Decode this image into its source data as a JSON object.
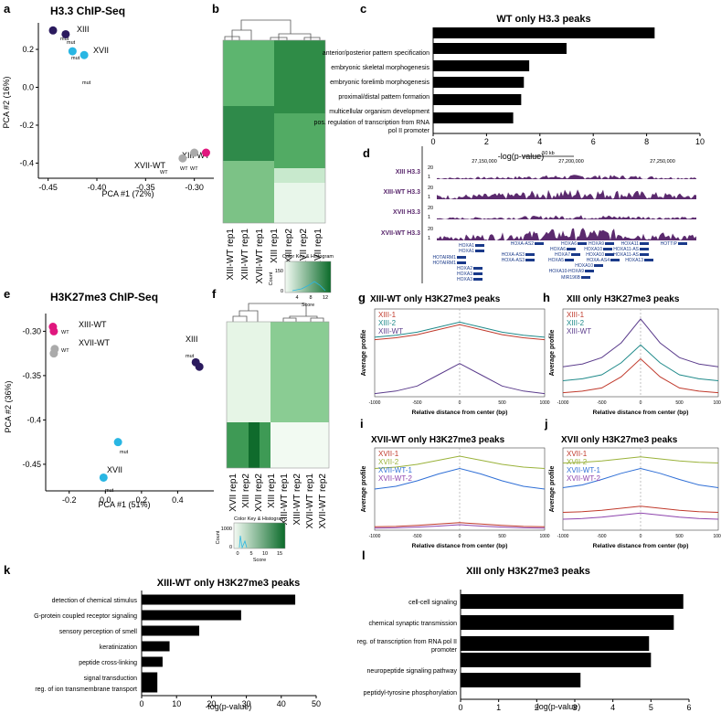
{
  "panels": {
    "a": {
      "letter": "a",
      "title": "H3.3 ChIP-Seq",
      "xlabel": "PCA #1 (72%)",
      "ylabel": "PCA #2 (16%)",
      "xticks": [
        "-0.45",
        "-0.40",
        "-0.35",
        "-0.30"
      ],
      "yticks": [
        "0.2",
        "0.0",
        "-0.2",
        "-0.4"
      ],
      "group_labels": [
        "XIII",
        "XVII",
        "XIII-WT",
        "XVII-WT"
      ],
      "point_labels": [
        "mut",
        "mut",
        "mut",
        "mut",
        "WT",
        "WT",
        "WT"
      ]
    },
    "b": {
      "letter": "b",
      "columns": [
        "XIII-WT rep1",
        "XIII-WT rep1",
        "XVII-WT rep1",
        "XIII rep1",
        "XIII rep2",
        "XVII rep2",
        "XVII rep1"
      ],
      "key_title": "Color Key & Histogram",
      "key_ylabel": "Count",
      "key_xlabel": "Score",
      "key_yticks": [
        "150",
        "0"
      ],
      "key_xticks": [
        "4",
        "8",
        "12"
      ]
    },
    "c": {
      "letter": "c",
      "title": "WT only H3.3 peaks",
      "xlabel": "-log(p-value)",
      "xticks": [
        "0",
        "2",
        "4",
        "6",
        "8",
        "10"
      ],
      "terms": [
        "anterior/posterior pattern specification",
        "embryonic skeletal morphogenesis",
        "embryonic forelimb morphogenesis",
        "proximal/distal pattern formation",
        "multicellular organism development",
        "pos. regulation of transcription from RNA",
        "pol II promoter"
      ]
    },
    "d": {
      "letter": "d",
      "scale": "50 kb",
      "coords": [
        "27,150,000",
        "27,200,000",
        "27,250,000"
      ],
      "tracks": [
        "XIII H3.3",
        "XIII-WT H3.3",
        "XVII H3.3",
        "XVII-WT H3.3"
      ],
      "track_max": "20",
      "track_min": "1",
      "genes": [
        "HOXA1",
        "HOXA1",
        "HOTAIRM1",
        "HOTAIRM1",
        "HOXA2",
        "HOXA3",
        "HOXA3",
        "HOXA-AS2",
        "HOXA-AS3",
        "HOXA-AS3",
        "HOXA6",
        "HOXA6",
        "HOXA7",
        "HOXA5",
        "HOXA9",
        "HOXA10",
        "HOXA10",
        "HOXA-AS4",
        "HOXA10",
        "HOXA10-HOXA9",
        "MIR196B",
        "HOXA11",
        "HOXA11-AS",
        "HOXA11-AS",
        "HOXA13",
        "HOTTIP"
      ]
    },
    "e": {
      "letter": "e",
      "title": "H3K27me3 ChIP-Seq",
      "xlabel": "PCA #1 (51%)",
      "ylabel": "PCA #2 (36%)",
      "xticks": [
        "-0.2",
        "0.0",
        "0.2",
        "0.4"
      ],
      "yticks": [
        "-0.30",
        "-0.35",
        "-0.4",
        "-0.45"
      ],
      "group_labels": [
        "XIII-WT",
        "XVII-WT",
        "XIII",
        "XVII"
      ],
      "point_labels": [
        "WT",
        "WT",
        "mut",
        "mut",
        "mut"
      ]
    },
    "f": {
      "letter": "f",
      "columns": [
        "XVII rep1",
        "XIII rep2",
        "XVII rep2",
        "XIII rep1",
        "XIII-WT rep1",
        "XIII-WT rep2",
        "XVII-WT rep1",
        "XVII-WT rep2"
      ],
      "key_title": "Color Key & Histogram",
      "key_ylabel": "Count",
      "key_xlabel": "Score",
      "key_yticks": [
        "1000",
        "0"
      ],
      "key_xticks": [
        "0",
        "5",
        "10",
        "15"
      ]
    },
    "g": {
      "letter": "g",
      "title": "XIII-WT only H3K27me3 peaks",
      "legend": [
        "XIII-1",
        "XIII-2",
        "XIII-WT"
      ],
      "colors": [
        "#c0392b",
        "#1f8a8a",
        "#5b3c8c"
      ],
      "ylabel": "Average profile",
      "xlabel": "Relative distance from center (bp)",
      "xticks": [
        "-1000",
        "-500",
        "0",
        "500",
        "1000"
      ]
    },
    "h": {
      "letter": "h",
      "title": "XIII only H3K27me3 peaks",
      "legend": [
        "XIII-1",
        "XIII-2",
        "XIII-WT"
      ],
      "colors": [
        "#c0392b",
        "#1f8a8a",
        "#5b3c8c"
      ],
      "ylabel": "Average profile",
      "xlabel": "Relative distance from center (bp)",
      "xticks": [
        "-1000",
        "-500",
        "0",
        "500",
        "1000"
      ]
    },
    "i": {
      "letter": "i",
      "title": "XVII-WT only H3K27me3 peaks",
      "legend": [
        "XVII-1",
        "XVII-2",
        "XVII-WT-1",
        "XVII-WT-2"
      ],
      "colors": [
        "#c0392b",
        "#9ab23a",
        "#2f6fd6",
        "#8e44ad"
      ],
      "ylabel": "Average profile",
      "xlabel": "Relative distance from center (bp)",
      "xticks": [
        "-1000",
        "-500",
        "0",
        "500",
        "1000"
      ]
    },
    "j": {
      "letter": "j",
      "title": "XVII only H3K27me3 peaks",
      "legend": [
        "XVII-1",
        "XVII-2",
        "XVII-WT-1",
        "XVII-WT-2"
      ],
      "colors": [
        "#c0392b",
        "#9ab23a",
        "#2f6fd6",
        "#8e44ad"
      ],
      "ylabel": "Average profile",
      "xlabel": "Relative distance from center (bp)",
      "xticks": [
        "-1000",
        "-500",
        "0",
        "500",
        "1000"
      ]
    },
    "k": {
      "letter": "k",
      "title": "XIII-WT only H3K27me3 peaks",
      "xlabel": "-log(p-value)",
      "xticks": [
        "0",
        "10",
        "20",
        "30",
        "40",
        "50"
      ],
      "terms": [
        "detection of chemical stimulus",
        "G-protein coupled receptor signaling",
        "sensory perception of smell",
        "keratinization",
        "peptide cross-linking",
        "signal transduction",
        "reg. of ion transmembrane transport"
      ]
    },
    "l": {
      "letter": "l",
      "title": "XIII only H3K27me3 peaks",
      "xlabel": "-log(p-value)",
      "xticks": [
        "0",
        "1",
        "2",
        "3",
        "4",
        "5",
        "6"
      ],
      "terms": [
        "cell-cell signaling",
        "chemical synaptic transmission",
        "reg. of transcription from RNA pol II",
        "promoter",
        "neuropeptide signaling pathway",
        "peptidyl-tyrosine phosphorylation"
      ]
    }
  },
  "chart_data": [
    {
      "id": "a",
      "type": "scatter",
      "title": "H3.3 ChIP-Seq",
      "xlabel": "PCA #1 (72%)",
      "ylabel": "PCA #2 (16%)",
      "xlim": [
        -0.46,
        -0.28
      ],
      "ylim": [
        -0.48,
        0.34
      ],
      "points": [
        {
          "group": "XIII",
          "x": -0.445,
          "y": 0.3,
          "color": "#2b1a5e"
        },
        {
          "group": "XIII",
          "x": -0.432,
          "y": 0.28,
          "color": "#2b1a5e"
        },
        {
          "group": "XVII",
          "x": -0.425,
          "y": 0.19,
          "color": "#29b6e3"
        },
        {
          "group": "XVII",
          "x": -0.413,
          "y": 0.17,
          "color": "#29b6e3"
        },
        {
          "group": "XIII-WT",
          "x": -0.288,
          "y": -0.345,
          "color": "#e0177e"
        },
        {
          "group": "XIII-WT",
          "x": -0.3,
          "y": -0.345,
          "color": "#aaaaaa"
        },
        {
          "group": "XVII-WT",
          "x": -0.312,
          "y": -0.375,
          "color": "#aaaaaa"
        }
      ]
    },
    {
      "id": "c",
      "type": "bar",
      "title": "WT only H3.3 peaks",
      "xlabel": "-log(p-value)",
      "xlim": [
        0,
        10
      ],
      "categories": [
        "anterior/posterior pattern specification",
        "embryonic skeletal morphogenesis",
        "embryonic forelimb morphogenesis",
        "proximal/distal pattern formation",
        "multicellular organism development",
        "pos. regulation of transcription from RNA pol II promoter"
      ],
      "values": [
        8.3,
        5.0,
        3.6,
        3.4,
        3.3,
        3.0
      ]
    },
    {
      "id": "e",
      "type": "scatter",
      "title": "H3K27me3 ChIP-Seq",
      "xlabel": "PCA #1 (51%)",
      "ylabel": "PCA #2 (36%)",
      "xlim": [
        -0.33,
        0.6
      ],
      "ylim": [
        -0.48,
        -0.28
      ],
      "points": [
        {
          "group": "XIII-WT",
          "x": -0.29,
          "y": -0.295,
          "color": "#e0177e"
        },
        {
          "group": "XIII-WT",
          "x": -0.285,
          "y": -0.3,
          "color": "#e0177e"
        },
        {
          "group": "XVII-WT",
          "x": -0.28,
          "y": -0.32,
          "color": "#aaaaaa"
        },
        {
          "group": "XVII-WT",
          "x": -0.285,
          "y": -0.325,
          "color": "#aaaaaa"
        },
        {
          "group": "XIII",
          "x": 0.5,
          "y": -0.335,
          "color": "#2b1a5e"
        },
        {
          "group": "XIII",
          "x": 0.52,
          "y": -0.34,
          "color": "#2b1a5e"
        },
        {
          "group": "XVII",
          "x": 0.07,
          "y": -0.425,
          "color": "#29b6e3"
        },
        {
          "group": "XVII",
          "x": -0.01,
          "y": -0.465,
          "color": "#29b6e3"
        }
      ]
    },
    {
      "id": "g",
      "type": "line",
      "title": "XIII-WT only H3K27me3 peaks",
      "xlim": [
        -1000,
        1000
      ],
      "x": [
        -1000,
        -750,
        -500,
        -250,
        0,
        250,
        500,
        750,
        1000
      ],
      "series": [
        {
          "name": "XIII-1",
          "values": [
            1.86,
            1.89,
            1.94,
            2.02,
            2.1,
            2.02,
            1.94,
            1.89,
            1.86
          ]
        },
        {
          "name": "XIII-2",
          "values": [
            1.9,
            1.93,
            1.98,
            2.06,
            2.14,
            2.06,
            1.98,
            1.93,
            1.9
          ]
        },
        {
          "name": "XIII-WT",
          "values": [
            1.0,
            1.04,
            1.12,
            1.3,
            1.48,
            1.3,
            1.12,
            1.04,
            1.0
          ]
        }
      ]
    },
    {
      "id": "h",
      "type": "line",
      "title": "XIII only H3K27me3 peaks",
      "xlim": [
        -1000,
        1000
      ],
      "x": [
        -1000,
        -750,
        -500,
        -250,
        0,
        250,
        500,
        750,
        1000
      ],
      "series": [
        {
          "name": "XIII-1",
          "values": [
            1.0,
            1.04,
            1.12,
            1.4,
            1.85,
            1.4,
            1.12,
            1.04,
            1.0
          ]
        },
        {
          "name": "XIII-2",
          "values": [
            1.3,
            1.35,
            1.45,
            1.75,
            2.2,
            1.75,
            1.45,
            1.35,
            1.3
          ]
        },
        {
          "name": "XIII-WT",
          "values": [
            1.65,
            1.72,
            1.88,
            2.25,
            2.85,
            2.25,
            1.88,
            1.72,
            1.65
          ]
        }
      ]
    },
    {
      "id": "i",
      "type": "line",
      "title": "XVII-WT only H3K27me3 peaks",
      "xlim": [
        -1000,
        1000
      ],
      "x": [
        -1000,
        -750,
        -500,
        -250,
        0,
        250,
        500,
        750,
        1000
      ],
      "series": [
        {
          "name": "XVII-1",
          "values": [
            0.5,
            0.55,
            0.7,
            0.9,
            1.1,
            0.9,
            0.7,
            0.55,
            0.5
          ]
        },
        {
          "name": "XVII-2",
          "values": [
            9.0,
            9.2,
            9.6,
            10.2,
            10.8,
            10.2,
            9.6,
            9.2,
            9.0
          ]
        },
        {
          "name": "XVII-WT-1",
          "values": [
            6.0,
            6.4,
            7.2,
            8.2,
            9.0,
            8.2,
            7.2,
            6.4,
            6.0
          ]
        },
        {
          "name": "XVII-WT-2",
          "values": [
            0.3,
            0.35,
            0.45,
            0.6,
            0.8,
            0.6,
            0.45,
            0.35,
            0.3
          ]
        }
      ]
    },
    {
      "id": "j",
      "type": "line",
      "title": "XVII only H3K27me3 peaks",
      "xlim": [
        -1000,
        1000
      ],
      "x": [
        -1000,
        -750,
        -500,
        -250,
        0,
        250,
        500,
        750,
        1000
      ],
      "series": [
        {
          "name": "XVII-1",
          "values": [
            2.6,
            2.7,
            2.9,
            3.2,
            3.5,
            3.2,
            2.9,
            2.7,
            2.6
          ]
        },
        {
          "name": "XVII-2",
          "values": [
            9.8,
            9.9,
            10.1,
            10.4,
            10.7,
            10.4,
            10.1,
            9.9,
            9.8
          ]
        },
        {
          "name": "XVII-WT-1",
          "values": [
            6.2,
            6.6,
            7.4,
            8.3,
            9.0,
            8.3,
            7.4,
            6.6,
            6.2
          ]
        },
        {
          "name": "XVII-WT-2",
          "values": [
            1.6,
            1.7,
            1.9,
            2.2,
            2.5,
            2.2,
            1.9,
            1.7,
            1.6
          ]
        }
      ]
    },
    {
      "id": "k",
      "type": "bar",
      "title": "XIII-WT only H3K27me3 peaks",
      "xlabel": "-log(p-value)",
      "xlim": [
        0,
        50
      ],
      "categories": [
        "detection of chemical stimulus",
        "G-protein coupled receptor signaling",
        "sensory perception of smell",
        "keratinization",
        "peptide cross-linking",
        "signal transduction",
        "reg. of ion transmembrane transport"
      ],
      "values": [
        44,
        28.5,
        16.5,
        8,
        6,
        4.5,
        4.5
      ]
    },
    {
      "id": "l",
      "type": "bar",
      "title": "XIII only H3K27me3 peaks",
      "xlabel": "-log(p-value)",
      "xlim": [
        0,
        6
      ],
      "categories": [
        "cell-cell signaling",
        "chemical synaptic transmission",
        "reg. of transcription from RNA pol II promoter",
        "neuropeptide signaling pathway",
        "peptidyl-tyrosine phosphorylation"
      ],
      "values": [
        5.85,
        5.6,
        4.95,
        5.0,
        3.15
      ]
    }
  ]
}
